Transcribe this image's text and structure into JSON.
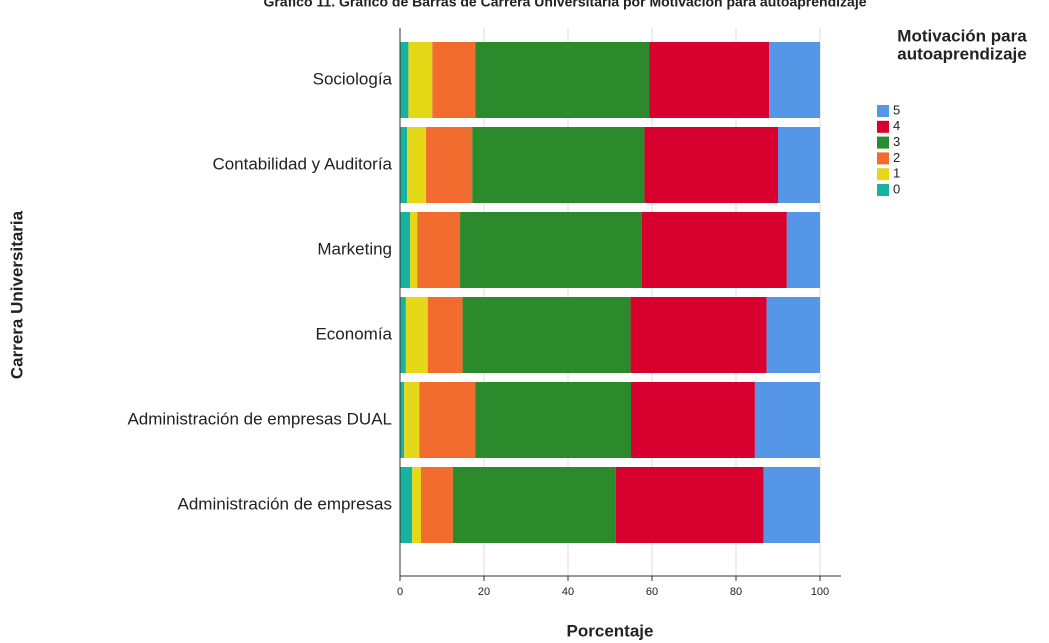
{
  "chart_data": {
    "type": "stacked_barh",
    "title": "Gráfico 11. Gráfico de Barras de Carrera Universitaria por Motivación para autoaprendizaje",
    "xlabel": "Porcentaje",
    "ylabel": "Carrera Universitaria",
    "legend_title": [
      "Motivación para",
      "autoaprendizaje"
    ],
    "legend_position": "upper right",
    "categories": [
      "Sociología",
      "Contabilidad y Auditoría",
      "Marketing",
      "Economía",
      "Administración de empresas DUAL",
      "Administración de empresas"
    ],
    "series": [
      {
        "name": "0",
        "color": "#17b3a0",
        "values": [
          2,
          1.7,
          2.4,
          1.4,
          1,
          2.9
        ]
      },
      {
        "name": "1",
        "color": "#e5d817",
        "values": [
          5.7,
          4.5,
          1.7,
          5.2,
          3.6,
          2.1
        ]
      },
      {
        "name": "2",
        "color": "#f26b2f",
        "values": [
          10.2,
          11,
          10.2,
          8.3,
          13.3,
          7.6
        ]
      },
      {
        "name": "3",
        "color": "#2b8a2b",
        "values": [
          41.4,
          41,
          43.3,
          40,
          37.1,
          38.8
        ]
      },
      {
        "name": "4",
        "color": "#d7002f",
        "values": [
          28.6,
          31.8,
          34.5,
          32.4,
          29.5,
          35.2
        ]
      },
      {
        "name": "5",
        "color": "#5596e6",
        "values": [
          12.1,
          10,
          7.9,
          12.7,
          15.5,
          13.4
        ]
      }
    ],
    "xlim": [
      0,
      105
    ],
    "xticks": [
      0,
      20,
      40,
      60,
      80,
      100
    ],
    "grid": true
  }
}
